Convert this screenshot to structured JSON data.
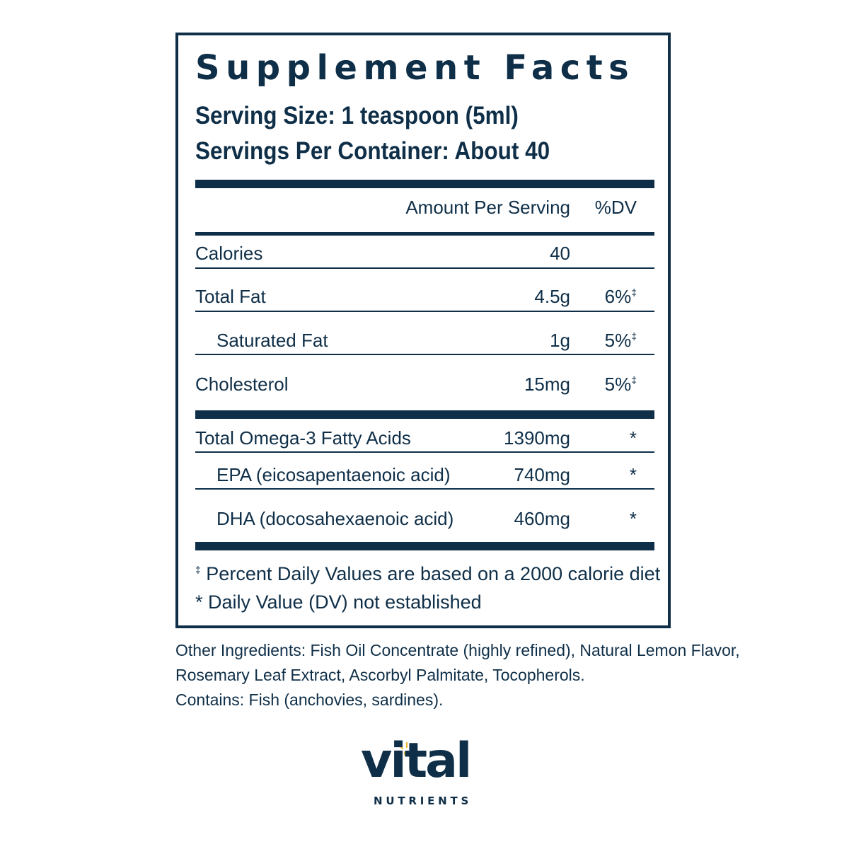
{
  "panel": {
    "title": "Supplement Facts",
    "serving_size": "Serving Size: 1 teaspoon (5ml)",
    "servings_per_container": "Servings Per Container: About 40",
    "columns": {
      "amount": "Amount Per Serving",
      "dv": "%DV"
    },
    "rows": [
      {
        "label": "Calories",
        "amount": "40",
        "dv": "",
        "dv_mark": ""
      },
      {
        "label": "Total Fat",
        "amount": "4.5g",
        "dv": "6%",
        "dv_mark": "‡"
      },
      {
        "label": "Saturated Fat",
        "amount": "1g",
        "dv": "5%",
        "dv_mark": "‡"
      },
      {
        "label": "Cholesterol",
        "amount": "15mg",
        "dv": "5%",
        "dv_mark": "‡"
      },
      {
        "label": "Total Omega-3 Fatty Acids",
        "amount": "1390mg",
        "dv": "*",
        "dv_mark": ""
      },
      {
        "label": "EPA (eicosapentaenoic acid)",
        "amount": "740mg",
        "dv": "*",
        "dv_mark": ""
      },
      {
        "label": "DHA (docosahexaenoic acid)",
        "amount": "460mg",
        "dv": "*",
        "dv_mark": ""
      }
    ],
    "footnotes": {
      "dagger_mark": "‡",
      "dagger_text": " Percent Daily Values are based on a 2000 calorie diet",
      "star_text": "* Daily Value (DV) not established"
    }
  },
  "other_ingredients": {
    "line1": "Other Ingredients: Fish Oil Concentrate (highly refined), Natural Lemon Flavor,",
    "line2": "Rosemary Leaf Extract, Ascorbyl Palmitate, Tocopherols.",
    "line3": "Contains: Fish (anchovies, sardines)."
  },
  "brand": {
    "word": "vital",
    "sub": "NUTRIENTS",
    "primary_color": "#0f2f48",
    "accent_color": "#f2b233"
  }
}
